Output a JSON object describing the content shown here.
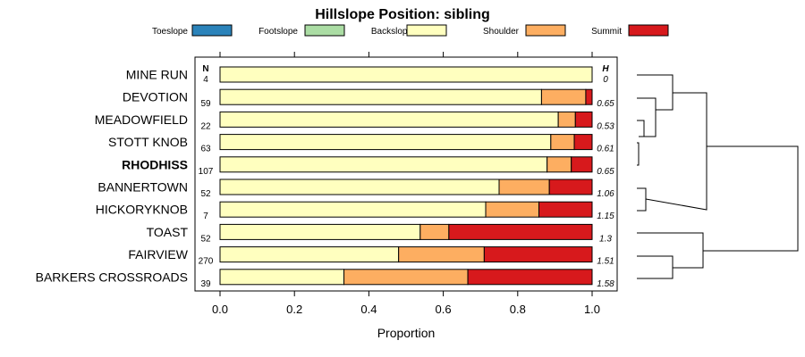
{
  "chart_data": {
    "type": "bar",
    "stacked": true,
    "orientation": "horizontal",
    "title": "Hillslope Position: sibling",
    "xlabel": "Proportion",
    "xlim": [
      0,
      1
    ],
    "xticks": [
      "0.0",
      "0.2",
      "0.4",
      "0.6",
      "0.8",
      "1.0"
    ],
    "xtick_values": [
      0,
      0.2,
      0.4,
      0.6,
      0.8,
      1.0
    ],
    "n_header": "N",
    "h_header": "H",
    "legend_position": "top",
    "series": [
      {
        "name": "Toeslope",
        "color": "#2b83ba"
      },
      {
        "name": "Footslope",
        "color": "#abdda4"
      },
      {
        "name": "Backslope",
        "color": "#ffffbf"
      },
      {
        "name": "Shoulder",
        "color": "#fdae61"
      },
      {
        "name": "Summit",
        "color": "#d7191c"
      }
    ],
    "categories": [
      {
        "label": "MINE RUN",
        "n": "4",
        "h": "0",
        "values": [
          0,
          0,
          1.0,
          0,
          0
        ],
        "bold": false
      },
      {
        "label": "DEVOTION",
        "n": "59",
        "h": "0.65",
        "values": [
          0,
          0,
          0.864,
          0.119,
          0.017
        ],
        "bold": false
      },
      {
        "label": "MEADOWFIELD",
        "n": "22",
        "h": "0.53",
        "values": [
          0,
          0,
          0.909,
          0.046,
          0.045
        ],
        "bold": false
      },
      {
        "label": "STOTT KNOB",
        "n": "63",
        "h": "0.61",
        "values": [
          0,
          0,
          0.889,
          0.063,
          0.048
        ],
        "bold": false
      },
      {
        "label": "RHODHISS",
        "n": "107",
        "h": "0.65",
        "values": [
          0,
          0,
          0.879,
          0.065,
          0.056
        ],
        "bold": true
      },
      {
        "label": "BANNERTOWN",
        "n": "52",
        "h": "1.06",
        "values": [
          0,
          0,
          0.75,
          0.135,
          0.115
        ],
        "bold": false
      },
      {
        "label": "HICKORYKNOB",
        "n": "7",
        "h": "1.15",
        "values": [
          0,
          0,
          0.714,
          0.143,
          0.143
        ],
        "bold": false
      },
      {
        "label": "TOAST",
        "n": "52",
        "h": "1.3",
        "values": [
          0,
          0,
          0.538,
          0.077,
          0.385
        ],
        "bold": false
      },
      {
        "label": "FAIRVIEW",
        "n": "270",
        "h": "1.51",
        "values": [
          0,
          0,
          0.48,
          0.23,
          0.29
        ],
        "bold": false
      },
      {
        "label": "BARKERS CROSSROADS",
        "n": "39",
        "h": "1.58",
        "values": [
          0,
          0,
          0.333,
          0.333,
          0.334
        ],
        "bold": false
      }
    ]
  }
}
